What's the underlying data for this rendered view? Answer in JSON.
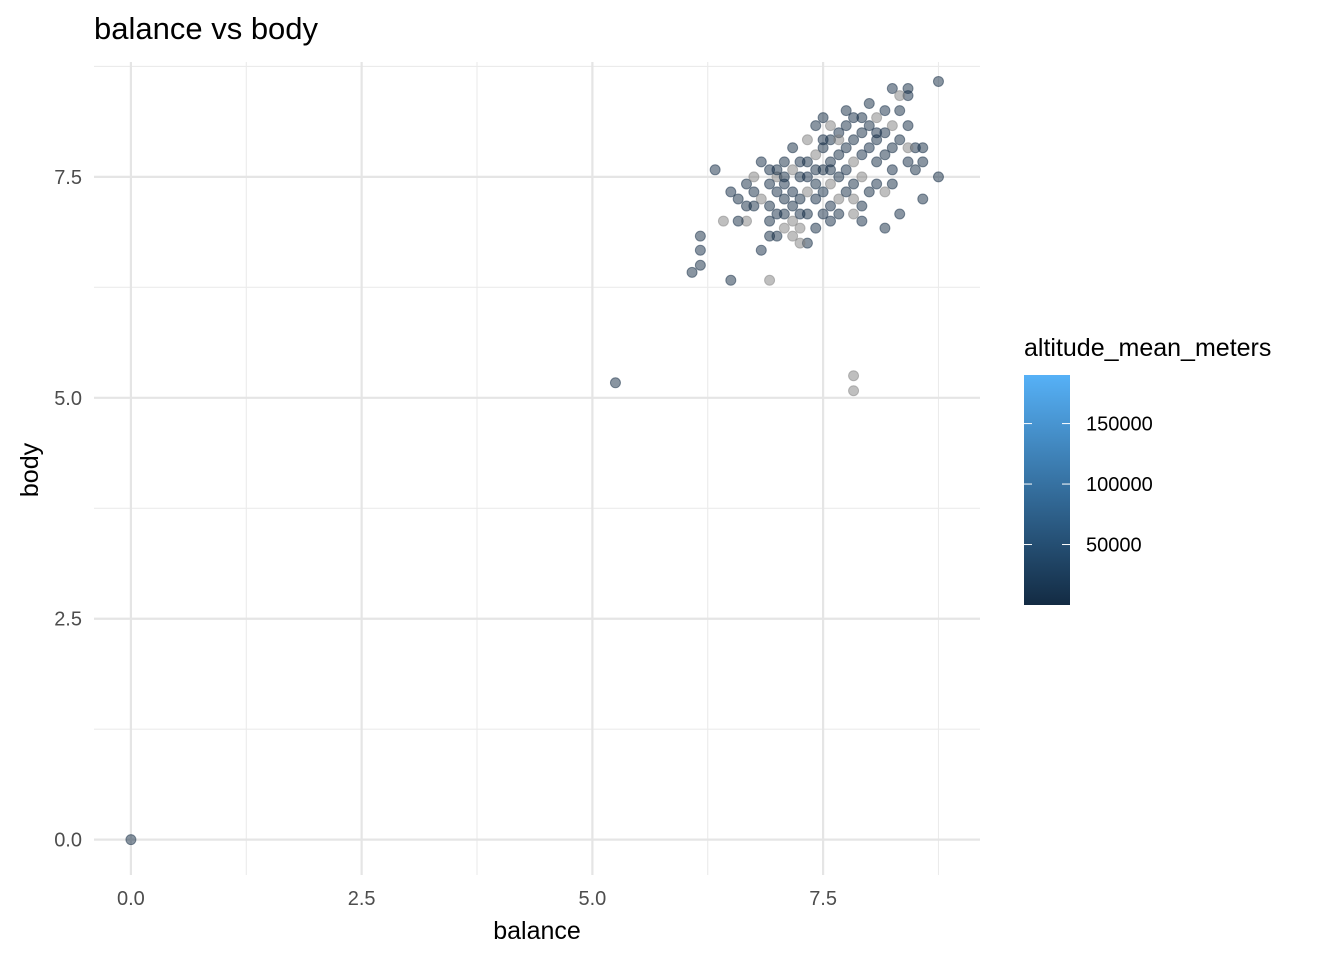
{
  "chart_data": {
    "type": "scatter",
    "title": "balance vs body",
    "xlabel": "balance",
    "ylabel": "body",
    "xlim": [
      -0.4,
      9.2
    ],
    "ylim": [
      -0.4,
      8.8
    ],
    "x_ticks": [
      0.0,
      2.5,
      5.0,
      7.5
    ],
    "x_tick_labels": [
      "0.0",
      "2.5",
      "5.0",
      "7.5"
    ],
    "y_ticks": [
      0.0,
      2.5,
      5.0,
      7.5
    ],
    "y_tick_labels": [
      "0.0",
      "2.5",
      "5.0",
      "7.5"
    ],
    "grid": true,
    "point_alpha": 0.5,
    "missing_color": "#808080",
    "color_scale": {
      "name": "altitude_mean_meters",
      "low_color": "#132B43",
      "high_color": "#56B1F7",
      "min": 1,
      "max": 190164,
      "ticks": [
        50000,
        100000,
        150000
      ],
      "tick_labels": [
        "50000",
        "100000",
        "150000"
      ]
    },
    "points": [
      {
        "x": 0.0,
        "y": 0.0,
        "c": 1200
      },
      {
        "x": 5.25,
        "y": 5.17,
        "c": 1300
      },
      {
        "x": 7.83,
        "y": 5.25,
        "c": null
      },
      {
        "x": 7.83,
        "y": 5.08,
        "c": null
      },
      {
        "x": 6.92,
        "y": 6.33,
        "c": null
      },
      {
        "x": 6.5,
        "y": 6.33,
        "c": 1500
      },
      {
        "x": 6.08,
        "y": 6.42,
        "c": 1100
      },
      {
        "x": 6.17,
        "y": 6.5,
        "c": 1400
      },
      {
        "x": 6.17,
        "y": 6.67,
        "c": 1600
      },
      {
        "x": 6.17,
        "y": 6.83,
        "c": 1300
      },
      {
        "x": 6.33,
        "y": 7.58,
        "c": 1700
      },
      {
        "x": 8.75,
        "y": 8.58,
        "c": 1200
      },
      {
        "x": 8.75,
        "y": 7.5,
        "c": 1500
      },
      {
        "x": 8.58,
        "y": 7.25,
        "c": 1400
      },
      {
        "x": 8.33,
        "y": 7.08,
        "c": 1800
      },
      {
        "x": 8.25,
        "y": 8.5,
        "c": 1600
      },
      {
        "x": 8.42,
        "y": 8.5,
        "c": 1300
      },
      {
        "x": 8.42,
        "y": 8.42,
        "c": 1900
      },
      {
        "x": 8.33,
        "y": 8.42,
        "c": null
      },
      {
        "x": 8.42,
        "y": 8.08,
        "c": 1500
      },
      {
        "x": 8.58,
        "y": 7.83,
        "c": 1200
      },
      {
        "x": 8.5,
        "y": 7.83,
        "c": 1700
      },
      {
        "x": 8.58,
        "y": 7.67,
        "c": 1400
      },
      {
        "x": 8.42,
        "y": 7.67,
        "c": 1600
      },
      {
        "x": 8.5,
        "y": 7.58,
        "c": 1300
      },
      {
        "x": 8.17,
        "y": 6.92,
        "c": 1500
      },
      {
        "x": 7.92,
        "y": 7.0,
        "c": 1600
      },
      {
        "x": 7.33,
        "y": 6.75,
        "c": 1100
      },
      {
        "x": 7.25,
        "y": 6.75,
        "c": null
      },
      {
        "x": 6.83,
        "y": 6.67,
        "c": 1700
      },
      {
        "x": 6.67,
        "y": 7.0,
        "c": null
      },
      {
        "x": 6.58,
        "y": 7.0,
        "c": 1300
      },
      {
        "x": 6.42,
        "y": 7.0,
        "c": null
      },
      {
        "x": 6.5,
        "y": 7.33,
        "c": 1800
      },
      {
        "x": 6.58,
        "y": 7.25,
        "c": 1400
      },
      {
        "x": 6.67,
        "y": 7.42,
        "c": 1500
      },
      {
        "x": 6.75,
        "y": 7.33,
        "c": 1200
      },
      {
        "x": 6.83,
        "y": 7.67,
        "c": 1600
      },
      {
        "x": 6.92,
        "y": 7.17,
        "c": 1300
      },
      {
        "x": 6.92,
        "y": 7.0,
        "c": 1100
      },
      {
        "x": 7.0,
        "y": 6.83,
        "c": 1400
      },
      {
        "x": 7.0,
        "y": 7.33,
        "c": 1700
      },
      {
        "x": 7.0,
        "y": 7.5,
        "c": null
      },
      {
        "x": 7.08,
        "y": 7.25,
        "c": 1500
      },
      {
        "x": 7.08,
        "y": 7.08,
        "c": 1200
      },
      {
        "x": 7.08,
        "y": 7.42,
        "c": 1900
      },
      {
        "x": 7.17,
        "y": 7.17,
        "c": 1300
      },
      {
        "x": 7.17,
        "y": 7.58,
        "c": null
      },
      {
        "x": 7.17,
        "y": 7.33,
        "c": 1600
      },
      {
        "x": 7.17,
        "y": 7.0,
        "c": null
      },
      {
        "x": 7.25,
        "y": 7.5,
        "c": 1400
      },
      {
        "x": 7.25,
        "y": 7.25,
        "c": 1200
      },
      {
        "x": 7.25,
        "y": 7.08,
        "c": 1700
      },
      {
        "x": 7.33,
        "y": 7.67,
        "c": 1500
      },
      {
        "x": 7.33,
        "y": 7.33,
        "c": null
      },
      {
        "x": 7.42,
        "y": 7.58,
        "c": 1300
      },
      {
        "x": 7.42,
        "y": 7.42,
        "c": 2500
      },
      {
        "x": 7.42,
        "y": 7.25,
        "c": 1600
      },
      {
        "x": 7.42,
        "y": 7.75,
        "c": null
      },
      {
        "x": 7.5,
        "y": 7.83,
        "c": 1400
      },
      {
        "x": 7.5,
        "y": 7.58,
        "c": 1200
      },
      {
        "x": 7.5,
        "y": 7.33,
        "c": 6000
      },
      {
        "x": 7.5,
        "y": 7.08,
        "c": 1800
      },
      {
        "x": 7.58,
        "y": 7.67,
        "c": 1500
      },
      {
        "x": 7.58,
        "y": 7.92,
        "c": 1300
      },
      {
        "x": 7.58,
        "y": 7.42,
        "c": null
      },
      {
        "x": 7.58,
        "y": 7.17,
        "c": 1600
      },
      {
        "x": 7.67,
        "y": 7.75,
        "c": 1400
      },
      {
        "x": 7.67,
        "y": 8.0,
        "c": 1700
      },
      {
        "x": 7.67,
        "y": 7.5,
        "c": 1200
      },
      {
        "x": 7.67,
        "y": 7.25,
        "c": null
      },
      {
        "x": 7.75,
        "y": 7.83,
        "c": 1500
      },
      {
        "x": 7.75,
        "y": 8.08,
        "c": 1300
      },
      {
        "x": 7.75,
        "y": 7.58,
        "c": 1600
      },
      {
        "x": 7.75,
        "y": 8.25,
        "c": 1100
      },
      {
        "x": 7.83,
        "y": 7.92,
        "c": 1400
      },
      {
        "x": 7.83,
        "y": 7.67,
        "c": null
      },
      {
        "x": 7.83,
        "y": 8.17,
        "c": 1800
      },
      {
        "x": 7.83,
        "y": 7.42,
        "c": 1500
      },
      {
        "x": 7.92,
        "y": 8.0,
        "c": 1200
      },
      {
        "x": 7.92,
        "y": 7.75,
        "c": 1700
      },
      {
        "x": 7.92,
        "y": 7.5,
        "c": null
      },
      {
        "x": 8.0,
        "y": 8.08,
        "c": 1300
      },
      {
        "x": 8.0,
        "y": 7.83,
        "c": 1600
      },
      {
        "x": 8.0,
        "y": 8.33,
        "c": 1400
      },
      {
        "x": 8.08,
        "y": 7.92,
        "c": 1500
      },
      {
        "x": 8.08,
        "y": 8.17,
        "c": null
      },
      {
        "x": 8.08,
        "y": 7.67,
        "c": 1200
      },
      {
        "x": 8.17,
        "y": 8.0,
        "c": 1900
      },
      {
        "x": 8.17,
        "y": 7.75,
        "c": 1300
      },
      {
        "x": 8.17,
        "y": 8.25,
        "c": 1600
      },
      {
        "x": 8.25,
        "y": 7.83,
        "c": 1400
      },
      {
        "x": 8.25,
        "y": 8.08,
        "c": null
      },
      {
        "x": 8.25,
        "y": 7.58,
        "c": 1700
      },
      {
        "x": 8.33,
        "y": 8.25,
        "c": 1500
      },
      {
        "x": 8.33,
        "y": 7.92,
        "c": 1200
      },
      {
        "x": 8.42,
        "y": 7.83,
        "c": null
      },
      {
        "x": 7.17,
        "y": 7.83,
        "c": 1300
      },
      {
        "x": 7.25,
        "y": 7.67,
        "c": 1600
      },
      {
        "x": 7.33,
        "y": 7.92,
        "c": null
      },
      {
        "x": 7.42,
        "y": 8.08,
        "c": 1400
      },
      {
        "x": 7.5,
        "y": 8.17,
        "c": 1200
      },
      {
        "x": 7.58,
        "y": 8.08,
        "c": null
      },
      {
        "x": 7.0,
        "y": 7.58,
        "c": 1500
      },
      {
        "x": 6.92,
        "y": 7.42,
        "c": 1700
      },
      {
        "x": 6.83,
        "y": 7.25,
        "c": null
      },
      {
        "x": 6.75,
        "y": 7.17,
        "c": 1300
      },
      {
        "x": 6.92,
        "y": 7.58,
        "c": 1600
      },
      {
        "x": 7.08,
        "y": 7.67,
        "c": 1400
      },
      {
        "x": 7.33,
        "y": 7.08,
        "c": 1100
      },
      {
        "x": 7.25,
        "y": 6.92,
        "c": null
      },
      {
        "x": 7.58,
        "y": 7.0,
        "c": 1800
      },
      {
        "x": 7.67,
        "y": 7.08,
        "c": 1500
      },
      {
        "x": 7.83,
        "y": 7.25,
        "c": null
      },
      {
        "x": 8.0,
        "y": 7.33,
        "c": 1200
      },
      {
        "x": 8.08,
        "y": 7.42,
        "c": 1700
      },
      {
        "x": 8.17,
        "y": 7.33,
        "c": null
      },
      {
        "x": 8.25,
        "y": 7.42,
        "c": 1300
      },
      {
        "x": 7.0,
        "y": 7.08,
        "c": 1600
      },
      {
        "x": 7.08,
        "y": 6.92,
        "c": null
      },
      {
        "x": 6.92,
        "y": 6.83,
        "c": 1400
      },
      {
        "x": 7.17,
        "y": 6.83,
        "c": null
      },
      {
        "x": 7.42,
        "y": 6.92,
        "c": 1500
      },
      {
        "x": 6.67,
        "y": 7.17,
        "c": 1200
      },
      {
        "x": 6.75,
        "y": 7.5,
        "c": null
      },
      {
        "x": 7.5,
        "y": 7.92,
        "c": 1900
      },
      {
        "x": 7.67,
        "y": 7.92,
        "c": null
      },
      {
        "x": 7.92,
        "y": 8.17,
        "c": 1300
      },
      {
        "x": 8.08,
        "y": 8.0,
        "c": 1600
      },
      {
        "x": 7.75,
        "y": 7.33,
        "c": 1400
      },
      {
        "x": 7.58,
        "y": 7.58,
        "c": 1100
      },
      {
        "x": 7.33,
        "y": 7.5,
        "c": 1700
      },
      {
        "x": 7.08,
        "y": 7.5,
        "c": 1500
      },
      {
        "x": 7.83,
        "y": 7.08,
        "c": null
      },
      {
        "x": 7.92,
        "y": 7.17,
        "c": 1200
      }
    ]
  },
  "legend": {
    "position": "right"
  }
}
